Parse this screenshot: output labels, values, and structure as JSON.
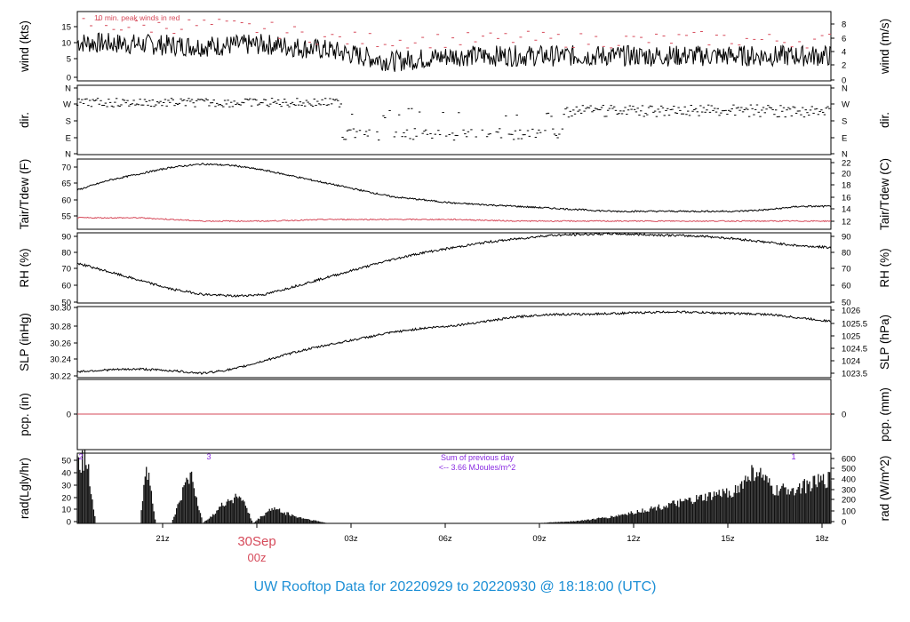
{
  "footer_title": "UW Rooftop Data for 20220929  to  20220930 @ 18:18:00  (UTC)",
  "colors": {
    "line": "#000000",
    "accent_red": "#d64a5a",
    "accent_purple": "#8a2be2",
    "footer_blue": "#1e90d6"
  },
  "chart_data": [
    {
      "id": "wind",
      "type": "line",
      "ylabel_left": "wind (kts)",
      "ylabel_right": "wind (m/s)",
      "y_ticks_left": [
        "0",
        "5",
        "10",
        "15"
      ],
      "y_ticks_right": [
        "0",
        "2",
        "4",
        "6",
        "8"
      ],
      "ylim": [
        0,
        18
      ],
      "annotation": "10 min. peak winds in red",
      "series": [
        {
          "style": "line",
          "x": [
            0,
            2,
            4,
            6,
            8,
            10,
            12,
            14,
            16,
            18,
            20,
            22,
            24
          ],
          "y": [
            10,
            9.5,
            9,
            9.5,
            8,
            5,
            6.5,
            6.5,
            6.5,
            6.5,
            6.5,
            6.5,
            6.5
          ]
        },
        {
          "style": "gust-dashes",
          "x": [
            0,
            2,
            4,
            6,
            8,
            10,
            12,
            14,
            16,
            18,
            20,
            22,
            24
          ],
          "y": [
            15,
            14,
            14.5,
            13.5,
            11,
            10.5,
            10.5,
            11,
            10.5,
            10.5,
            11,
            10.5,
            10.5
          ]
        }
      ]
    },
    {
      "id": "dir",
      "type": "scatter",
      "ylabel_left": "dir.",
      "ylabel_right": "dir.",
      "y_ticks_left": [
        "N",
        "W",
        "S",
        "E",
        "N"
      ],
      "y_ticks_right": [
        "N",
        "W",
        "S",
        "E",
        "N"
      ],
      "ylim": [
        0,
        360
      ]
    },
    {
      "id": "temp",
      "type": "line",
      "ylabel_left": "Tair/Tdew (F)",
      "ylabel_right": "Tair/Tdew (C)",
      "y_ticks_left": [
        "55",
        "60",
        "65",
        "70"
      ],
      "y_ticks_right": [
        "12",
        "14",
        "16",
        "18",
        "20",
        "22"
      ],
      "ylim": [
        51,
        72.5
      ],
      "series": [
        {
          "name": "Tair",
          "x": [
            0,
            1,
            2,
            3,
            4,
            5,
            6,
            7,
            8,
            9,
            10,
            11,
            12,
            13,
            14,
            15,
            16,
            17,
            18,
            19,
            20,
            21,
            22,
            23,
            24
          ],
          "y": [
            63,
            66,
            68,
            70,
            71,
            70.5,
            69,
            67,
            65,
            63,
            61,
            60,
            59,
            58.5,
            58,
            57.5,
            57,
            56.5,
            56.5,
            56.5,
            56.5,
            56.5,
            57,
            58,
            58
          ]
        },
        {
          "name": "Tdew",
          "x": [
            0,
            2,
            4,
            6,
            8,
            10,
            12,
            14,
            16,
            18,
            20,
            22,
            24
          ],
          "y": [
            54.5,
            54.5,
            53.5,
            53.5,
            54,
            54,
            54,
            53.5,
            53.5,
            53.5,
            53.5,
            53.5,
            53.5
          ]
        }
      ]
    },
    {
      "id": "rh",
      "type": "line",
      "ylabel_left": "RH (%)",
      "ylabel_right": "RH (%)",
      "y_ticks_left": [
        "50",
        "60",
        "70",
        "80",
        "90"
      ],
      "y_ticks_right": [
        "50",
        "60",
        "70",
        "80",
        "90"
      ],
      "ylim": [
        50,
        90.5
      ],
      "x": [
        0,
        1,
        2,
        3,
        4,
        5,
        6,
        7,
        8,
        9,
        10,
        11,
        12,
        13,
        14,
        15,
        16,
        17,
        18,
        19,
        20,
        21,
        22,
        23,
        24
      ],
      "y": [
        73,
        68,
        63,
        58,
        55,
        54,
        55,
        60,
        65,
        70,
        75,
        79,
        82,
        85,
        87,
        89,
        89.5,
        90,
        89.5,
        89,
        88.5,
        87,
        85,
        83,
        82
      ]
    },
    {
      "id": "slp",
      "type": "line",
      "ylabel_left": "SLP (inHg)",
      "ylabel_right": "SLP (hPa)",
      "y_ticks_left": [
        "30.22",
        "30.24",
        "30.26",
        "30.28",
        "30.30"
      ],
      "y_ticks_right": [
        "1023.5",
        "1024",
        "1024.5",
        "1025",
        "1025.5",
        "1026"
      ],
      "ylim": [
        30.22,
        30.302
      ],
      "x": [
        0,
        1,
        2,
        3,
        4,
        5,
        6,
        7,
        8,
        9,
        10,
        11,
        12,
        13,
        14,
        15,
        16,
        17,
        18,
        19,
        20,
        21,
        22,
        23,
        24
      ],
      "y": [
        30.227,
        30.229,
        30.23,
        30.228,
        30.225,
        30.23,
        30.24,
        30.25,
        30.258,
        30.265,
        30.272,
        30.277,
        30.28,
        30.285,
        30.29,
        30.293,
        30.293,
        30.294,
        30.295,
        30.296,
        30.295,
        30.294,
        30.293,
        30.289,
        30.285
      ]
    },
    {
      "id": "pcp",
      "type": "line",
      "ylabel_left": "pcp. (in)",
      "ylabel_right": "pcp. (mm)",
      "y_ticks_left": [
        "0"
      ],
      "y_ticks_right": [
        "0"
      ],
      "x": [
        0,
        24
      ],
      "y": [
        0,
        0
      ]
    },
    {
      "id": "rad",
      "type": "area",
      "ylabel_left": "rad(Lgly/hr)",
      "ylabel_right": "rad (W/m^2)",
      "y_ticks_left": [
        "0",
        "10",
        "20",
        "30",
        "40",
        "50"
      ],
      "y_ticks_right": [
        "0",
        "100",
        "200",
        "300",
        "400",
        "500",
        "600"
      ],
      "ylim": [
        0,
        55
      ],
      "annotation_sum": "Sum of previous day",
      "annotation_value": "<-- 3.66 MJoules/m^2",
      "markers": [
        "2",
        "3",
        "1"
      ],
      "x": [
        0,
        0.3,
        0.6,
        1.5,
        2.0,
        2.2,
        2.5,
        3.0,
        3.6,
        4.0,
        4.8,
        5.2,
        5.6,
        6.2,
        7.0,
        8.0,
        14.5,
        16.0,
        17.0,
        18.0,
        19.0,
        20.0,
        21.0,
        21.6,
        22.2,
        23.0,
        24.0
      ],
      "y": [
        46,
        50,
        0,
        0,
        0,
        48,
        0,
        0,
        40,
        0,
        18,
        22,
        0,
        12,
        5,
        0,
        0,
        2,
        5,
        10,
        15,
        20,
        26,
        42,
        25,
        28,
        35
      ]
    }
  ],
  "x_axis": {
    "ticks": [
      "21z",
      "00z",
      "03z",
      "06z",
      "09z",
      "12z",
      "15z",
      "18z"
    ],
    "date_label": "30Sep",
    "date_label_hour": "00z",
    "xlim": [
      0,
      24
    ]
  }
}
